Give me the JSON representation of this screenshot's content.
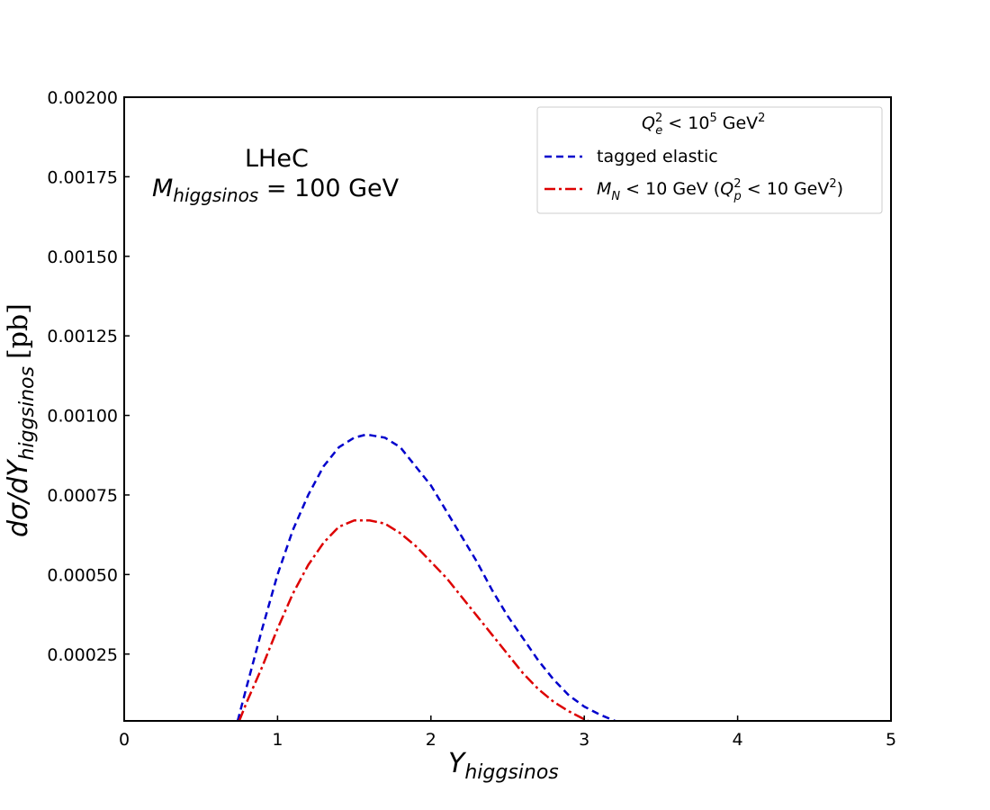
{
  "chart_data": {
    "type": "line",
    "xlabel": {
      "main": "Y",
      "sub": "higgsinos"
    },
    "ylabel": {
      "main": "dσ/dY",
      "sub": "higgsinos",
      "unit": "[pb]"
    },
    "xlim": [
      0,
      5
    ],
    "ylim": [
      4e-05,
      0.002
    ],
    "x_ticks": [
      "0",
      "1",
      "2",
      "3",
      "4",
      "5"
    ],
    "y_ticks": [
      {
        "value": 0.00025,
        "label": "0.00025"
      },
      {
        "value": 0.0005,
        "label": "0.00050"
      },
      {
        "value": 0.00075,
        "label": "0.00075"
      },
      {
        "value": 0.001,
        "label": "0.00100"
      },
      {
        "value": 0.00125,
        "label": "0.00125"
      },
      {
        "value": 0.0015,
        "label": "0.00150"
      },
      {
        "value": 0.00175,
        "label": "0.00175"
      },
      {
        "value": 0.002,
        "label": "0.00200"
      }
    ],
    "grid": false,
    "legend_position": "top-right",
    "legend": {
      "title": "Q_e^2 < 10^5 GeV^2",
      "entries": [
        "tagged elastic",
        "M_N < 10 GeV (Q_p^2 < 10 GeV^2)"
      ]
    },
    "annotation": [
      "LHeC",
      "M_higgsinos = 100 GeV"
    ],
    "series": [
      {
        "name": "tagged elastic",
        "color": "#0000cc",
        "dash": "dashed",
        "x": [
          0.74,
          0.8,
          0.9,
          1.0,
          1.1,
          1.2,
          1.3,
          1.4,
          1.5,
          1.58,
          1.7,
          1.8,
          1.9,
          2.0,
          2.1,
          2.2,
          2.3,
          2.4,
          2.5,
          2.6,
          2.7,
          2.8,
          2.9,
          3.0,
          3.1,
          3.2,
          3.33
        ],
        "y": [
          4e-05,
          0.00015,
          0.00033,
          0.0005,
          0.00064,
          0.00075,
          0.00084,
          0.0009,
          0.00093,
          0.00094,
          0.00093,
          0.0009,
          0.00084,
          0.00078,
          0.0007,
          0.00062,
          0.00054,
          0.00045,
          0.00037,
          0.0003,
          0.00023,
          0.00017,
          0.00012,
          8.5e-05,
          6e-05,
          4e-05,
          2.5e-05
        ]
      },
      {
        "name": "M_N < 10 GeV (Q_p^2 < 10 GeV^2)",
        "color": "#dd0000",
        "dash": "dashdot",
        "x": [
          0.75,
          0.8,
          0.9,
          1.0,
          1.1,
          1.2,
          1.3,
          1.4,
          1.5,
          1.6,
          1.7,
          1.8,
          1.9,
          2.0,
          2.1,
          2.2,
          2.3,
          2.4,
          2.5,
          2.6,
          2.7,
          2.8,
          2.9,
          3.0,
          3.1,
          3.27
        ],
        "y": [
          4e-05,
          0.0001,
          0.00021,
          0.00033,
          0.00044,
          0.00053,
          0.0006,
          0.00065,
          0.00067,
          0.00067,
          0.00066,
          0.00063,
          0.00059,
          0.00054,
          0.00049,
          0.00043,
          0.00037,
          0.00031,
          0.00025,
          0.00019,
          0.00014,
          0.0001,
          7e-05,
          4.5e-05,
          2.5e-05,
          2e-05
        ]
      }
    ]
  }
}
